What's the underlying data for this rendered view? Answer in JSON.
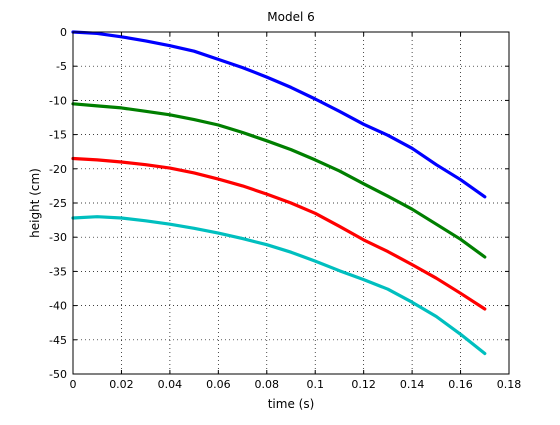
{
  "chart_data": {
    "type": "line",
    "title": "Model 6",
    "xlabel": "time (s)",
    "ylabel": "height (cm)",
    "xlim": [
      0,
      0.18
    ],
    "ylim": [
      -50,
      0
    ],
    "x_ticks": [
      "0",
      "0.02",
      "0.04",
      "0.06",
      "0.08",
      "0.1",
      "0.12",
      "0.14",
      "0.16",
      "0.18"
    ],
    "y_ticks": [
      "0",
      "-5",
      "-10",
      "-15",
      "-20",
      "-25",
      "-30",
      "-35",
      "-40",
      "-45",
      "-50"
    ],
    "grid": true,
    "grid_style": "dotted",
    "x": [
      0.0,
      0.01,
      0.02,
      0.03,
      0.04,
      0.05,
      0.06,
      0.07,
      0.08,
      0.09,
      0.1,
      0.11,
      0.12,
      0.13,
      0.14,
      0.15,
      0.16,
      0.17
    ],
    "series": [
      {
        "color": "#0000ff",
        "values": [
          0.0,
          -0.2,
          -0.7,
          -1.3,
          -2.0,
          -2.8,
          -4.0,
          -5.2,
          -6.6,
          -8.1,
          -9.8,
          -11.6,
          -13.5,
          -15.1,
          -17.0,
          -19.4,
          -21.6,
          -24.1
        ]
      },
      {
        "color": "#007f00",
        "values": [
          -10.5,
          -10.8,
          -11.1,
          -11.6,
          -12.1,
          -12.8,
          -13.6,
          -14.7,
          -15.9,
          -17.2,
          -18.7,
          -20.3,
          -22.2,
          -24.0,
          -25.9,
          -28.1,
          -30.3,
          -32.9
        ]
      },
      {
        "color": "#ff0000",
        "values": [
          -18.5,
          -18.7,
          -19.0,
          -19.4,
          -19.9,
          -20.6,
          -21.5,
          -22.5,
          -23.7,
          -25.0,
          -26.5,
          -28.4,
          -30.4,
          -32.1,
          -34.0,
          -36.0,
          -38.2,
          -40.5
        ]
      },
      {
        "color": "#00bfbf",
        "values": [
          -27.2,
          -27.0,
          -27.2,
          -27.6,
          -28.1,
          -28.7,
          -29.4,
          -30.2,
          -31.1,
          -32.2,
          -33.5,
          -34.9,
          -36.2,
          -37.6,
          -39.5,
          -41.6,
          -44.2,
          -47.0
        ]
      }
    ]
  }
}
